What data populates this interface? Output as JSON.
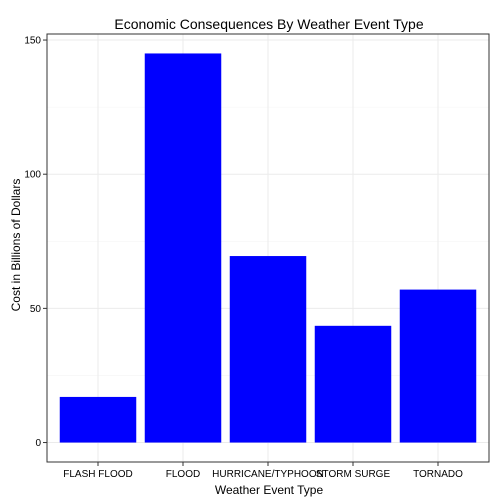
{
  "chart_data": {
    "type": "bar",
    "title": "Economic Consequences By Weather Event Type",
    "xlabel": "Weather Event Type",
    "ylabel": "Cost in Billions of Dollars",
    "categories": [
      "FLASH FLOOD",
      "FLOOD",
      "HURRICANE/TYPHOON",
      "STORM SURGE",
      "TORNADO"
    ],
    "values": [
      17,
      145,
      69.5,
      43.5,
      57
    ],
    "ylim": [
      -7.25,
      152.25
    ],
    "yticks": [
      0,
      50,
      100,
      150
    ],
    "ytick_labels": [
      "0",
      "50",
      "100",
      "150"
    ],
    "grid": true,
    "bar_color": "#0000ff",
    "grid_color": "#ebebeb",
    "panel_border_color": "#333333"
  }
}
